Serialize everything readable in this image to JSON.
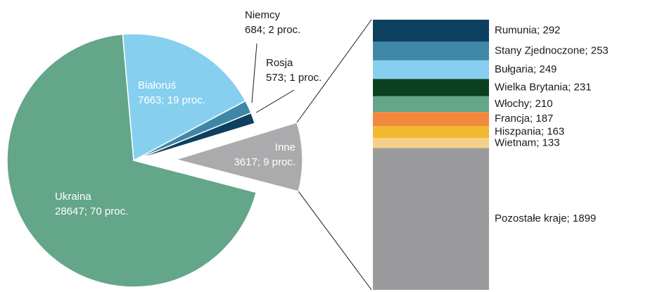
{
  "chart_data": [
    {
      "type": "pie",
      "categories": [
        "Białoruś",
        "Niemcy",
        "Rosja",
        "Inne",
        "Ukraina"
      ],
      "values": [
        7663,
        684,
        573,
        3617,
        28647
      ],
      "value_labels": [
        "7663; 19 proc.",
        "684; 2 proc.",
        "573; 1 proc.",
        "3617; 9 proc.",
        "28647; 70 proc."
      ],
      "colors": [
        "#87cfee",
        "#3f87a6",
        "#0d3f5e",
        "#ababad",
        "#63a68a"
      ]
    },
    {
      "type": "bar",
      "values": [
        292,
        253,
        249,
        231,
        210,
        187,
        163,
        133,
        1899
      ],
      "value_labels": [
        "Rumunia; 292",
        "Stany Zjednoczone; 253",
        "Bułgaria; 249",
        "Wielka Brytania; 231",
        "Włochy; 210",
        "Francja; 187",
        "Hiszpania; 163",
        "Wietnam; 133",
        "Pozostałe kraje; 1899"
      ],
      "colors": [
        "#0d3f5e",
        "#3f87a6",
        "#87cfee",
        "#0a4020",
        "#63a68a",
        "#f0883e",
        "#f2b830",
        "#f5d08a",
        "#9a9a9c"
      ]
    }
  ]
}
